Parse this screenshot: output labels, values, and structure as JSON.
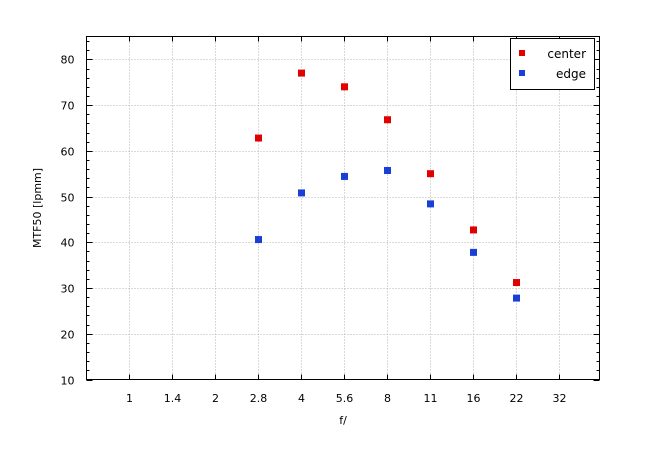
{
  "chart_data": {
    "type": "scatter",
    "title": "",
    "xlabel": "f/",
    "ylabel": "MTF50 [lpmm]",
    "x_categories": [
      "1",
      "1.4",
      "2",
      "2.8",
      "4",
      "5.6",
      "8",
      "11",
      "16",
      "22",
      "32"
    ],
    "ylim": [
      10,
      85
    ],
    "yticks": [
      10,
      20,
      30,
      40,
      50,
      60,
      70,
      80
    ],
    "grid": true,
    "legend_position": "top-right",
    "series": [
      {
        "name": "center",
        "color": "#e00000",
        "points": [
          {
            "x": "2.8",
            "y": 62.8
          },
          {
            "x": "4",
            "y": 77.0
          },
          {
            "x": "5.6",
            "y": 74.0
          },
          {
            "x": "8",
            "y": 66.8
          },
          {
            "x": "11",
            "y": 55.0
          },
          {
            "x": "16",
            "y": 42.7
          },
          {
            "x": "22",
            "y": 31.2
          }
        ]
      },
      {
        "name": "edge",
        "color": "#1a3fd6",
        "points": [
          {
            "x": "2.8",
            "y": 40.6
          },
          {
            "x": "4",
            "y": 50.8
          },
          {
            "x": "5.6",
            "y": 54.4
          },
          {
            "x": "8",
            "y": 55.7
          },
          {
            "x": "11",
            "y": 48.4
          },
          {
            "x": "16",
            "y": 37.8
          },
          {
            "x": "22",
            "y": 27.8
          }
        ]
      }
    ]
  }
}
